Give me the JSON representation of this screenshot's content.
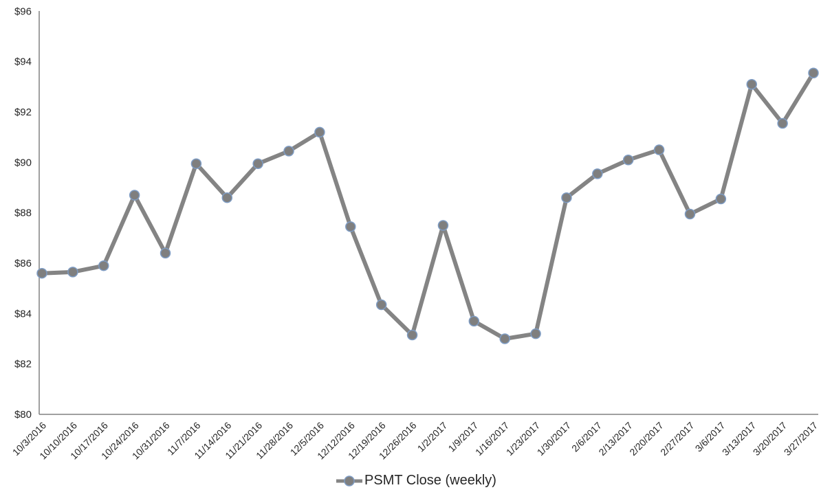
{
  "chart_data": {
    "type": "line",
    "title": "",
    "xlabel": "",
    "ylabel": "",
    "x_labels": [
      "10/3/2016",
      "10/10/2016",
      "10/17/2016",
      "10/24/2016",
      "10/31/2016",
      "11/7/2016",
      "11/14/2016",
      "11/21/2016",
      "11/28/2016",
      "12/5/2016",
      "12/12/2016",
      "12/19/2016",
      "12/26/2016",
      "1/2/2017",
      "1/9/2017",
      "1/16/2017",
      "1/23/2017",
      "1/30/2017",
      "2/6/2017",
      "2/13/2017",
      "2/20/2017",
      "2/27/2017",
      "3/6/2017",
      "3/13/2017",
      "3/20/2017",
      "3/27/2017"
    ],
    "series": [
      {
        "name": "PSMT Close (weekly)",
        "values": [
          85.6,
          85.65,
          85.9,
          88.7,
          86.4,
          89.95,
          88.6,
          89.95,
          90.45,
          91.2,
          87.45,
          84.35,
          83.15,
          87.5,
          83.7,
          83.0,
          83.2,
          88.6,
          89.55,
          90.1,
          90.5,
          87.95,
          88.55,
          93.1,
          91.55,
          93.55
        ]
      }
    ],
    "ylim": [
      80,
      96
    ],
    "y_tick_values": [
      96,
      94,
      92,
      90,
      88,
      86,
      84,
      82,
      80
    ],
    "y_tick_labels": [
      "$96",
      "$94",
      "$92",
      "$90",
      "$88",
      "$86",
      "$84",
      "$82",
      "$80"
    ],
    "grid": false,
    "legend_position": "bottom",
    "marker": "circle",
    "colors": {
      "line": "#848484",
      "marker_fill": "#7F7F7F",
      "marker_stroke": "#7E9CC4",
      "axis": "#808080",
      "text": "#262626"
    }
  },
  "legend": {
    "label": "PSMT Close (weekly)"
  }
}
